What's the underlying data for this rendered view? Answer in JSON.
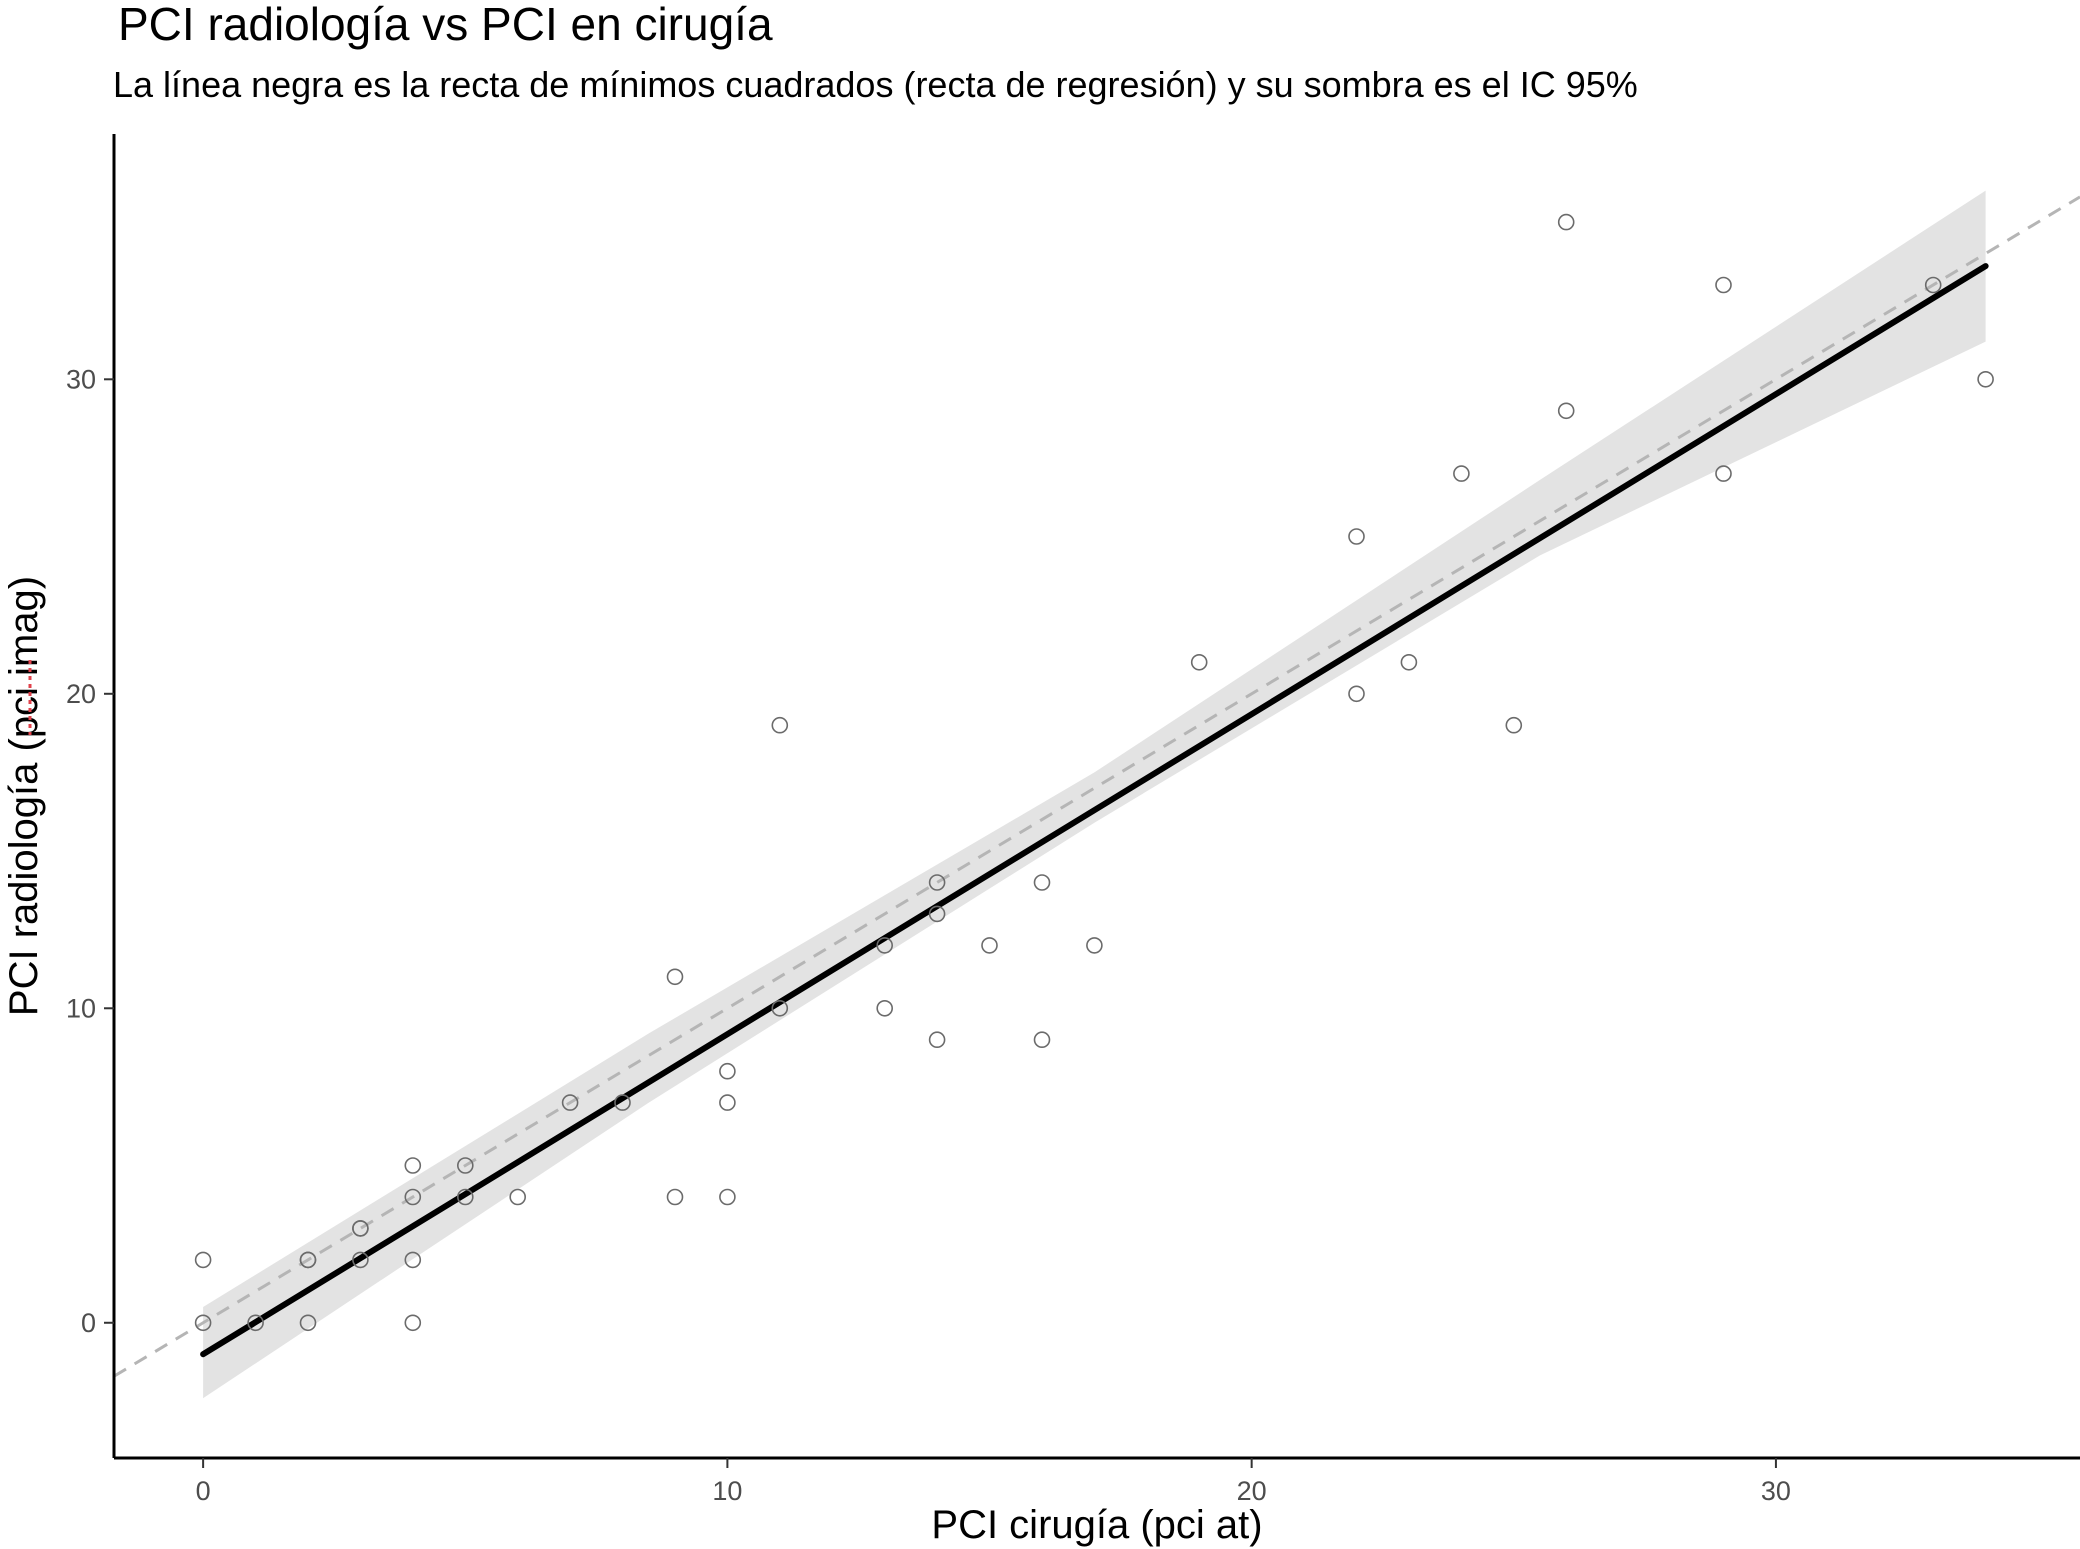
{
  "chart_data": {
    "type": "scatter",
    "title": "PCI radiología vs PCI en cirugía",
    "subtitle": "La línea negra es la recta de mínimos cuadrados (recta de regresión) y su sombra es el IC 95%",
    "xlabel": "PCI cirugía (pci at)",
    "ylabel": "PCI radiología (pci imag)",
    "xlim": [
      -1.7,
      35.8
    ],
    "ylim": [
      -4.3,
      37.8
    ],
    "xticks": [
      0,
      10,
      20,
      30
    ],
    "yticks": [
      0,
      10,
      20,
      30
    ],
    "xtick_labels": [
      "0",
      "10",
      "20",
      "30"
    ],
    "ytick_labels": [
      "0",
      "10",
      "20",
      "30"
    ],
    "grid": false,
    "colors": {
      "points": "#6b6b6b",
      "regression_line": "#000000",
      "confidence_band": "#e3e3e3",
      "identity_line": "#b5b5b5",
      "axes": "#000000"
    },
    "points": [
      {
        "x": 0,
        "y": 2
      },
      {
        "x": 0,
        "y": 0
      },
      {
        "x": 1,
        "y": 0
      },
      {
        "x": 2,
        "y": 2
      },
      {
        "x": 2,
        "y": 2
      },
      {
        "x": 2,
        "y": 0
      },
      {
        "x": 3,
        "y": 3
      },
      {
        "x": 3,
        "y": 3
      },
      {
        "x": 3,
        "y": 2
      },
      {
        "x": 4,
        "y": 5
      },
      {
        "x": 4,
        "y": 4
      },
      {
        "x": 4,
        "y": 2
      },
      {
        "x": 4,
        "y": 0
      },
      {
        "x": 5,
        "y": 5
      },
      {
        "x": 5,
        "y": 4
      },
      {
        "x": 6,
        "y": 4
      },
      {
        "x": 7,
        "y": 7
      },
      {
        "x": 8,
        "y": 7
      },
      {
        "x": 9,
        "y": 11
      },
      {
        "x": 9,
        "y": 4
      },
      {
        "x": 10,
        "y": 8
      },
      {
        "x": 10,
        "y": 7
      },
      {
        "x": 10,
        "y": 4
      },
      {
        "x": 11,
        "y": 19
      },
      {
        "x": 11,
        "y": 10
      },
      {
        "x": 13,
        "y": 12
      },
      {
        "x": 13,
        "y": 10
      },
      {
        "x": 14,
        "y": 14
      },
      {
        "x": 14,
        "y": 13
      },
      {
        "x": 14,
        "y": 9
      },
      {
        "x": 15,
        "y": 12
      },
      {
        "x": 16,
        "y": 14
      },
      {
        "x": 16,
        "y": 9
      },
      {
        "x": 17,
        "y": 12
      },
      {
        "x": 19,
        "y": 21
      },
      {
        "x": 22,
        "y": 25
      },
      {
        "x": 22,
        "y": 20
      },
      {
        "x": 23,
        "y": 21
      },
      {
        "x": 24,
        "y": 27
      },
      {
        "x": 25,
        "y": 19
      },
      {
        "x": 26,
        "y": 35
      },
      {
        "x": 26,
        "y": 29
      },
      {
        "x": 29,
        "y": 33
      },
      {
        "x": 29,
        "y": 27
      },
      {
        "x": 33,
        "y": 33
      },
      {
        "x": 34,
        "y": 30
      }
    ],
    "regression_line": {
      "x": [
        0,
        34
      ],
      "y": [
        -1,
        33.6
      ]
    },
    "confidence_band": {
      "x": [
        0,
        8.5,
        17,
        25.5,
        34
      ],
      "lower": [
        -2.4,
        7.0,
        15.9,
        24.4,
        31.2
      ],
      "upper": [
        0.5,
        9.2,
        17.5,
        26.8,
        36.0
      ]
    },
    "identity_line": {
      "x": [
        -1.7,
        35.8
      ],
      "y": [
        -1.7,
        35.8
      ]
    }
  }
}
